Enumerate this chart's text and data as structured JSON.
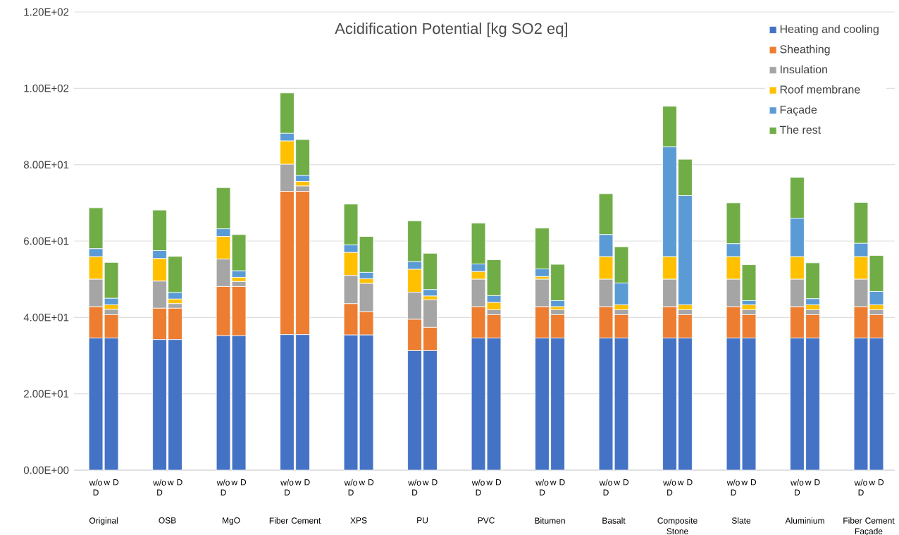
{
  "chart_data": {
    "type": "bar",
    "stacked": true,
    "title": "Acidification Potential [kg SO2 eq]",
    "categories": [
      "w/o D",
      "w D",
      "w/o D",
      "w D",
      "w/o D",
      "w D",
      "w/o D",
      "w D",
      "w/o D",
      "w D",
      "w/o D",
      "w D",
      "w/o D",
      "w D",
      "w/o D",
      "w D",
      "w/o D",
      "w D",
      "w/o D",
      "w D",
      "w/o D",
      "w D",
      "w/o D",
      "w D",
      "w/o D",
      "w D"
    ],
    "annotations": [
      "Original",
      "OSB",
      "MgO",
      "Fiber Cement",
      "XPS",
      "PU",
      "PVC",
      "Bitumen",
      "Basalt",
      "Composite Stone",
      "Slate",
      "Aluminium",
      "Fiber Cement Façade"
    ],
    "series": [
      {
        "name": "Heating and cooling",
        "color": "#4472c4",
        "values": [
          34.6,
          34.6,
          34.2,
          34.2,
          35.2,
          35.2,
          35.5,
          35.5,
          35.4,
          35.4,
          31.3,
          31.3,
          34.6,
          34.6,
          34.6,
          34.6,
          34.6,
          34.6,
          34.6,
          34.6,
          34.6,
          34.6,
          34.6,
          34.6,
          34.6,
          34.6
        ]
      },
      {
        "name": "Sheathing",
        "color": "#ed7d31",
        "values": [
          8.2,
          6.1,
          8.2,
          8.2,
          12.9,
          12.9,
          37.5,
          37.5,
          8.2,
          6.1,
          8.2,
          6.1,
          8.2,
          6.1,
          8.2,
          6.1,
          8.2,
          6.1,
          8.2,
          6.1,
          8.2,
          6.1,
          8.2,
          6.1,
          8.2,
          6.1
        ]
      },
      {
        "name": "Insulation",
        "color": "#a5a5a5",
        "values": [
          7.2,
          1.4,
          7.1,
          1.2,
          7.2,
          1.3,
          7.1,
          1.4,
          7.4,
          7.4,
          7.1,
          7.2,
          7.2,
          1.3,
          7.2,
          1.3,
          7.2,
          1.3,
          7.2,
          1.3,
          7.2,
          1.3,
          7.2,
          1.3,
          7.2,
          1.3
        ]
      },
      {
        "name": "Roof membrane",
        "color": "#ffc000",
        "values": [
          5.9,
          1.2,
          5.9,
          1.2,
          5.9,
          1.1,
          6.1,
          1.2,
          6.0,
          1.2,
          6.0,
          1.0,
          2.0,
          1.9,
          0.7,
          0.8,
          5.9,
          1.3,
          5.9,
          1.3,
          5.9,
          1.3,
          5.9,
          1.3,
          5.9,
          1.3
        ]
      },
      {
        "name": "Façade",
        "color": "#5b9bd5",
        "values": [
          2.1,
          1.7,
          2.1,
          1.7,
          2.0,
          1.7,
          2.0,
          1.6,
          2.0,
          1.7,
          2.0,
          1.7,
          2.0,
          1.8,
          2.0,
          1.6,
          5.8,
          5.7,
          28.8,
          28.6,
          3.4,
          1.1,
          10.1,
          1.6,
          3.5,
          3.5
        ]
      },
      {
        "name": "The rest",
        "color": "#70ad47",
        "values": [
          10.7,
          9.4,
          10.6,
          9.5,
          10.8,
          9.5,
          10.6,
          9.4,
          10.7,
          9.4,
          10.7,
          9.5,
          10.7,
          9.4,
          10.7,
          9.5,
          10.7,
          9.5,
          10.6,
          9.5,
          10.7,
          9.4,
          10.7,
          9.4,
          10.7,
          9.4
        ]
      }
    ],
    "ylim": [
      0,
      120
    ],
    "yticks": [
      {
        "value": 0,
        "label": "0.00E+00"
      },
      {
        "value": 20,
        "label": "2.00E+01"
      },
      {
        "value": 40,
        "label": "4.00E+01"
      },
      {
        "value": 60,
        "label": "6.00E+01"
      },
      {
        "value": 80,
        "label": "8.00E+01"
      },
      {
        "value": 100,
        "label": "1.00E+02"
      },
      {
        "value": 120,
        "label": "1.20E+02"
      }
    ],
    "grid": "y",
    "legend": "top right"
  }
}
